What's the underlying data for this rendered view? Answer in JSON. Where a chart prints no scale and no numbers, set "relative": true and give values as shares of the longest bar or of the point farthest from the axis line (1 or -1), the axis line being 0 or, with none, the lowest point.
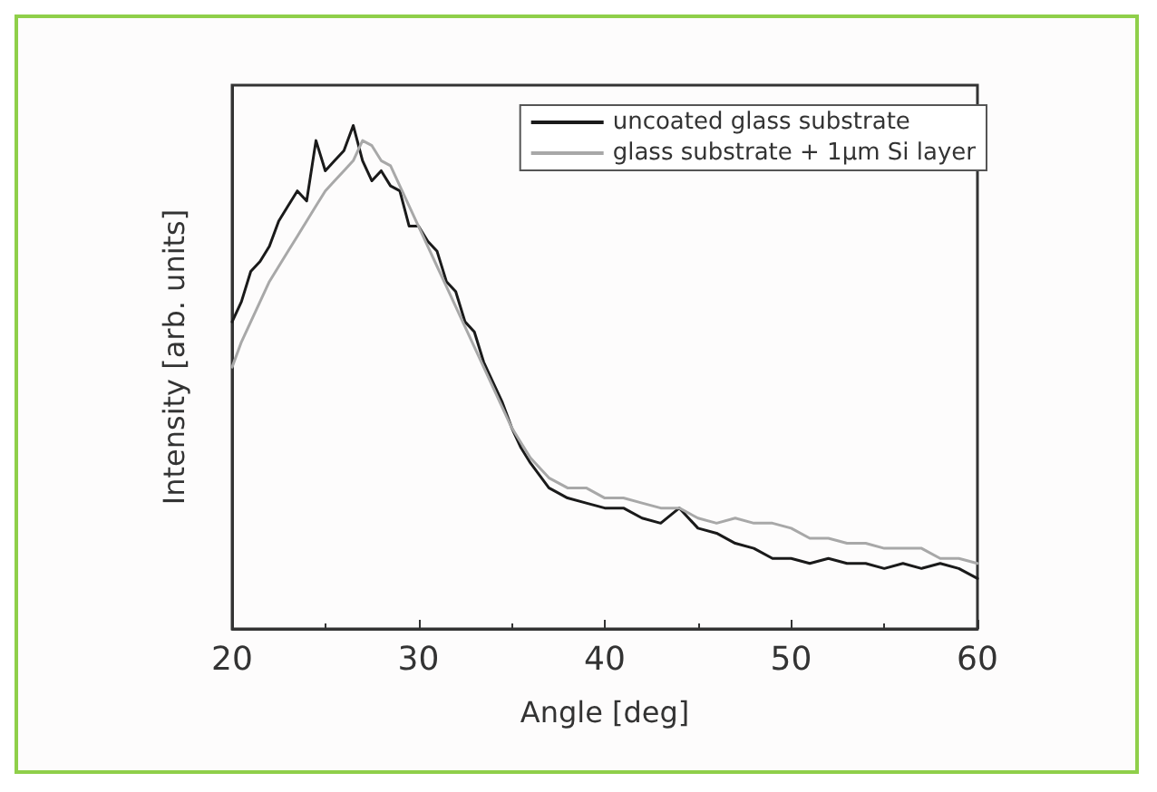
{
  "chart_data": {
    "type": "line",
    "xlabel": "Angle [deg]",
    "ylabel": "Intensity [arb. units]",
    "relative": true,
    "xlim": [
      20,
      60
    ],
    "xticks": [
      20,
      30,
      40,
      50,
      60
    ],
    "grid": false,
    "legend": "top right",
    "marker": "none",
    "line_style": "solid",
    "x": [
      20,
      20.5,
      21,
      21.5,
      22,
      22.5,
      23,
      23.5,
      24,
      24.5,
      25,
      25.5,
      26,
      26.5,
      27,
      27.5,
      28,
      28.5,
      29,
      29.5,
      30,
      30.5,
      31,
      31.5,
      32,
      32.5,
      33,
      33.5,
      34,
      34.5,
      35,
      35.5,
      36,
      37,
      38,
      39,
      40,
      41,
      42,
      43,
      44,
      45,
      46,
      47,
      48,
      49,
      50,
      51,
      52,
      53,
      54,
      55,
      56,
      57,
      58,
      59,
      60
    ],
    "series": [
      {
        "name": "uncoated glass substrate",
        "color": "#1a1a1a",
        "values": [
          0.61,
          0.65,
          0.71,
          0.73,
          0.76,
          0.81,
          0.84,
          0.87,
          0.85,
          0.97,
          0.91,
          0.93,
          0.95,
          1.0,
          0.93,
          0.89,
          0.91,
          0.88,
          0.87,
          0.8,
          0.8,
          0.77,
          0.75,
          0.69,
          0.67,
          0.61,
          0.59,
          0.53,
          0.49,
          0.45,
          0.4,
          0.36,
          0.33,
          0.28,
          0.26,
          0.25,
          0.24,
          0.24,
          0.22,
          0.21,
          0.24,
          0.2,
          0.19,
          0.17,
          0.16,
          0.14,
          0.14,
          0.13,
          0.14,
          0.13,
          0.13,
          0.12,
          0.13,
          0.12,
          0.13,
          0.12,
          0.1
        ]
      },
      {
        "name": "glass substrate + 1µm Si layer",
        "color": "#a8a8a8",
        "values": [
          0.52,
          0.57,
          0.61,
          0.65,
          0.69,
          0.72,
          0.75,
          0.78,
          0.81,
          0.84,
          0.87,
          0.89,
          0.91,
          0.93,
          0.97,
          0.96,
          0.93,
          0.92,
          0.88,
          0.84,
          0.8,
          0.76,
          0.72,
          0.68,
          0.64,
          0.6,
          0.56,
          0.52,
          0.48,
          0.44,
          0.4,
          0.37,
          0.34,
          0.3,
          0.28,
          0.28,
          0.26,
          0.26,
          0.25,
          0.24,
          0.24,
          0.22,
          0.21,
          0.22,
          0.21,
          0.21,
          0.2,
          0.18,
          0.18,
          0.17,
          0.17,
          0.16,
          0.16,
          0.16,
          0.14,
          0.14,
          0.13
        ]
      }
    ]
  }
}
